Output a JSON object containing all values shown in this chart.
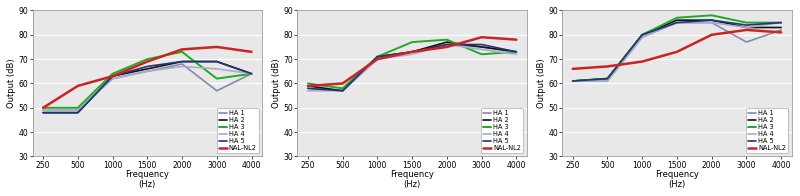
{
  "freqs": [
    250,
    500,
    1000,
    1500,
    2000,
    3000,
    4000
  ],
  "charts": [
    {
      "series": {
        "HA 1": [
          49,
          49,
          62,
          65,
          68,
          57,
          64
        ],
        "HA 2": [
          48,
          48,
          63,
          66,
          69,
          69,
          64
        ],
        "HA 3": [
          50,
          50,
          64,
          70,
          73,
          62,
          64
        ],
        "HA 4": [
          49,
          49,
          62,
          65,
          67,
          66,
          64
        ],
        "HA 5": [
          48,
          48,
          63,
          67,
          69,
          69,
          64
        ],
        "NAL-NL2": [
          50,
          59,
          63,
          69,
          74,
          75,
          73
        ]
      },
      "ylim": [
        30,
        90
      ],
      "yticks": [
        30,
        40,
        50,
        60,
        70,
        80,
        90
      ]
    },
    {
      "series": {
        "HA 1": [
          58,
          57,
          70,
          73,
          76,
          75,
          73
        ],
        "HA 2": [
          59,
          57,
          71,
          73,
          77,
          75,
          73
        ],
        "HA 3": [
          60,
          58,
          71,
          77,
          78,
          72,
          73
        ],
        "HA 4": [
          57,
          57,
          70,
          72,
          76,
          74,
          72
        ],
        "HA 5": [
          58,
          57,
          71,
          73,
          76,
          76,
          73
        ],
        "NAL-NL2": [
          59,
          60,
          70,
          73,
          75,
          79,
          78
        ]
      },
      "ylim": [
        30,
        90
      ],
      "yticks": [
        30,
        40,
        50,
        60,
        70,
        80,
        90
      ]
    },
    {
      "series": {
        "HA 1": [
          61,
          61,
          79,
          85,
          85,
          77,
          82
        ],
        "HA 2": [
          61,
          62,
          80,
          86,
          86,
          83,
          83
        ],
        "HA 3": [
          61,
          62,
          80,
          87,
          88,
          85,
          85
        ],
        "HA 4": [
          61,
          61,
          79,
          85,
          85,
          83,
          85
        ],
        "HA 5": [
          61,
          62,
          80,
          85,
          86,
          84,
          85
        ],
        "NAL-NL2": [
          66,
          67,
          69,
          73,
          80,
          82,
          81
        ]
      },
      "ylim": [
        30,
        90
      ],
      "yticks": [
        30,
        40,
        50,
        60,
        70,
        80,
        90
      ]
    }
  ],
  "colors": {
    "HA 1": "#8888aa",
    "HA 2": "#111111",
    "HA 3": "#22aa22",
    "HA 4": "#aaaacc",
    "HA 5": "#223377",
    "NAL-NL2": "#cc2222"
  },
  "linewidths": {
    "HA 1": 1.2,
    "HA 2": 1.2,
    "HA 3": 1.4,
    "HA 4": 1.2,
    "HA 5": 1.2,
    "NAL-NL2": 1.8
  },
  "legend_order": [
    "HA 1",
    "HA 2",
    "HA 3",
    "HA 4",
    "HA 5",
    "NAL-NL2"
  ],
  "ylabel": "Output (dB)",
  "xlabel_line1": "Frequency",
  "xlabel_line2": "(Hz)",
  "xtick_labels": [
    "250",
    "500",
    "1000",
    "1500",
    "2000",
    "3000",
    "4000"
  ],
  "background_color": "#ffffff",
  "axes_face_color": "#e8e8e8"
}
